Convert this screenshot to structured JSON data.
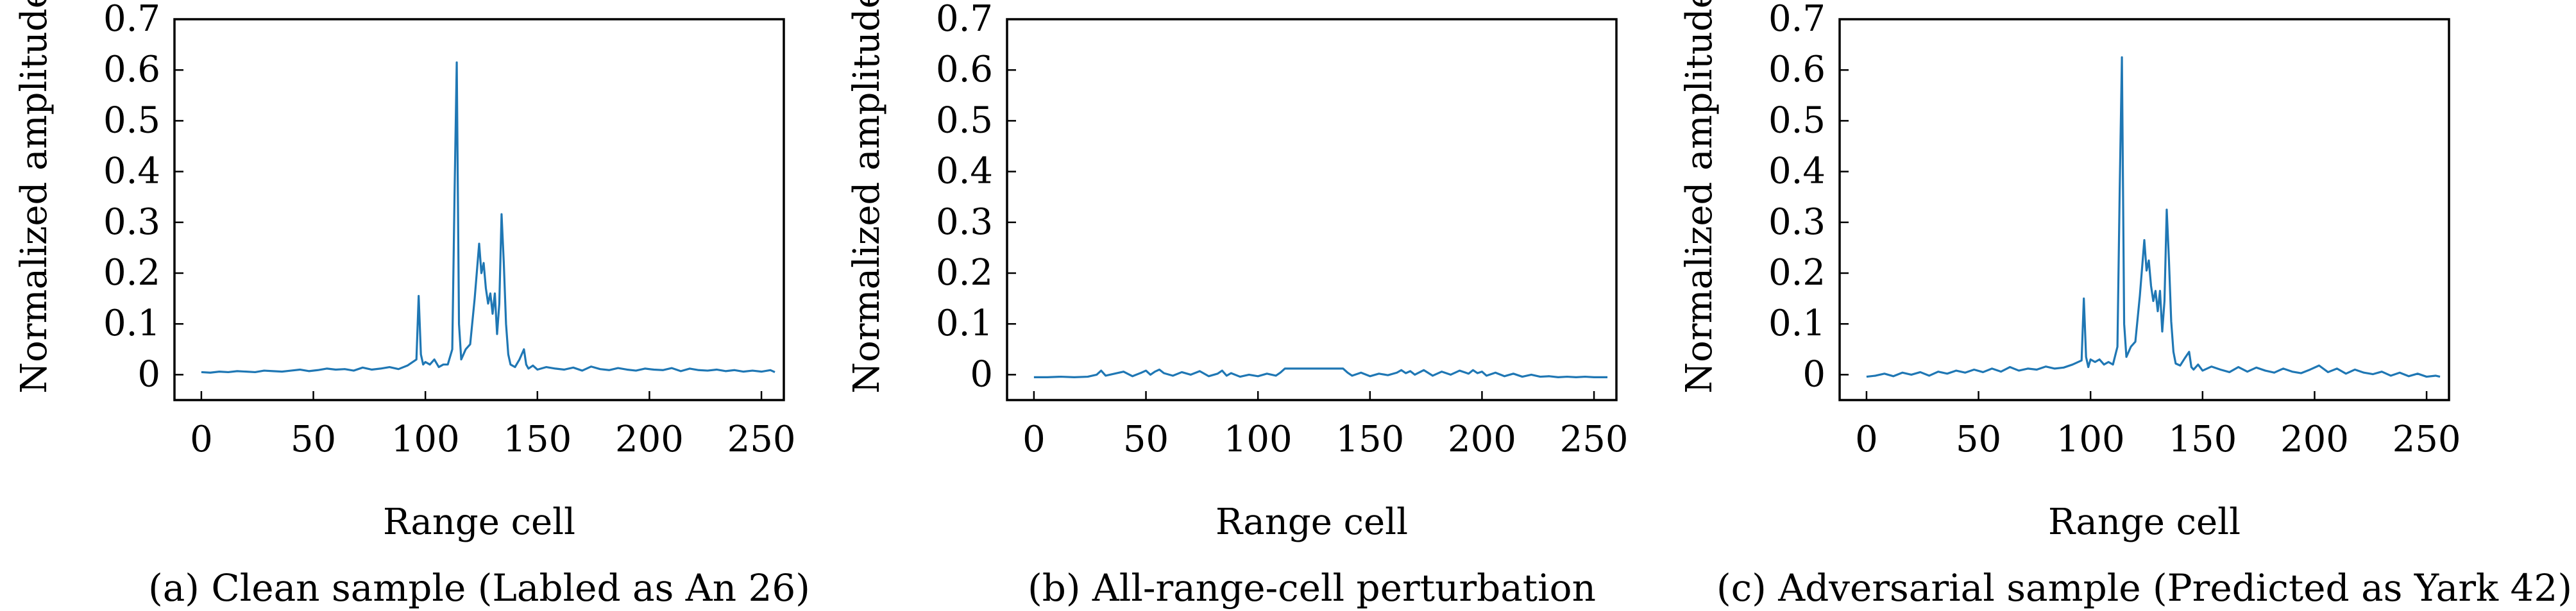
{
  "chart_data": [
    {
      "type": "line",
      "caption": "(a) Clean sample (Labled as An 26)",
      "xlabel": "Range cell",
      "ylabel": "Normalized amplitude",
      "xlim": [
        -12,
        260
      ],
      "ylim": [
        -0.05,
        0.7
      ],
      "xticks": [
        0,
        50,
        100,
        150,
        200,
        250
      ],
      "yticks": [
        0,
        0.1,
        0.2,
        0.3,
        0.4,
        0.5,
        0.6,
        0.7
      ],
      "grid": false,
      "series": [
        {
          "color": "#1f77b4",
          "x": [
            0,
            4,
            8,
            12,
            16,
            20,
            24,
            28,
            32,
            36,
            40,
            44,
            48,
            52,
            56,
            60,
            64,
            68,
            72,
            76,
            80,
            84,
            88,
            92,
            96,
            97,
            98,
            99,
            100,
            102,
            104,
            106,
            108,
            110,
            112,
            113,
            114,
            115,
            116,
            118,
            120,
            122,
            124,
            125,
            126,
            127,
            128,
            129,
            130,
            131,
            132,
            133,
            134,
            135,
            136,
            137,
            138,
            140,
            142,
            144,
            145,
            146,
            148,
            150,
            154,
            158,
            162,
            166,
            170,
            174,
            178,
            182,
            186,
            190,
            194,
            198,
            202,
            206,
            210,
            214,
            218,
            222,
            226,
            230,
            234,
            238,
            242,
            246,
            250,
            254,
            256
          ],
          "y": [
            0.005,
            0.004,
            0.006,
            0.005,
            0.007,
            0.006,
            0.005,
            0.008,
            0.007,
            0.006,
            0.008,
            0.01,
            0.007,
            0.009,
            0.012,
            0.01,
            0.011,
            0.008,
            0.014,
            0.01,
            0.012,
            0.015,
            0.011,
            0.018,
            0.03,
            0.155,
            0.04,
            0.02,
            0.025,
            0.02,
            0.03,
            0.015,
            0.02,
            0.02,
            0.05,
            0.35,
            0.615,
            0.1,
            0.03,
            0.05,
            0.06,
            0.15,
            0.258,
            0.2,
            0.22,
            0.17,
            0.14,
            0.16,
            0.12,
            0.16,
            0.08,
            0.14,
            0.316,
            0.22,
            0.1,
            0.04,
            0.02,
            0.015,
            0.03,
            0.05,
            0.02,
            0.012,
            0.018,
            0.01,
            0.015,
            0.012,
            0.01,
            0.014,
            0.008,
            0.016,
            0.011,
            0.009,
            0.013,
            0.01,
            0.008,
            0.012,
            0.01,
            0.009,
            0.013,
            0.007,
            0.012,
            0.009,
            0.008,
            0.01,
            0.007,
            0.009,
            0.006,
            0.008,
            0.006,
            0.009,
            0.005
          ]
        }
      ]
    },
    {
      "type": "line",
      "caption": "(b) All-range-cell perturbation",
      "xlabel": "Range cell",
      "ylabel": "Normalized amplitude",
      "xlim": [
        -12,
        260
      ],
      "ylim": [
        -0.05,
        0.7
      ],
      "xticks": [
        0,
        50,
        100,
        150,
        200,
        250
      ],
      "yticks": [
        0,
        0.1,
        0.2,
        0.3,
        0.4,
        0.5,
        0.6,
        0.7
      ],
      "grid": false,
      "series": [
        {
          "color": "#1f77b4",
          "x": [
            0,
            6,
            12,
            18,
            24,
            28,
            30,
            32,
            36,
            40,
            44,
            48,
            50,
            52,
            54,
            56,
            58,
            62,
            66,
            70,
            74,
            78,
            82,
            84,
            86,
            88,
            92,
            96,
            100,
            104,
            108,
            110,
            112,
            116,
            120,
            124,
            128,
            132,
            136,
            138,
            140,
            142,
            146,
            150,
            154,
            158,
            162,
            164,
            166,
            168,
            170,
            174,
            178,
            182,
            186,
            190,
            194,
            196,
            198,
            200,
            202,
            206,
            210,
            214,
            218,
            222,
            226,
            230,
            234,
            238,
            242,
            246,
            250,
            254,
            256
          ],
          "y": [
            -0.005,
            -0.005,
            -0.004,
            -0.005,
            -0.004,
            0.0,
            0.008,
            -0.002,
            0.002,
            0.006,
            -0.003,
            0.004,
            0.008,
            0.0,
            0.006,
            0.01,
            0.003,
            -0.002,
            0.005,
            0.0,
            0.007,
            -0.003,
            0.002,
            0.008,
            -0.002,
            0.003,
            -0.004,
            0.0,
            -0.003,
            0.002,
            -0.002,
            0.004,
            0.012,
            0.012,
            0.012,
            0.012,
            0.012,
            0.012,
            0.012,
            0.012,
            0.004,
            -0.002,
            0.004,
            -0.003,
            0.002,
            -0.001,
            0.004,
            0.009,
            0.003,
            0.007,
            0.0,
            0.009,
            -0.002,
            0.006,
            0.0,
            0.008,
            0.002,
            0.009,
            0.003,
            0.006,
            -0.002,
            0.004,
            -0.003,
            0.002,
            -0.004,
            0.0,
            -0.004,
            -0.003,
            -0.005,
            -0.004,
            -0.005,
            -0.004,
            -0.005,
            -0.005,
            -0.005
          ]
        }
      ]
    },
    {
      "type": "line",
      "caption": "(c) Adversarial sample (Predicted as Yark 42)",
      "xlabel": "Range cell",
      "ylabel": "Normalized amplitude",
      "xlim": [
        -12,
        260
      ],
      "ylim": [
        -0.05,
        0.7
      ],
      "xticks": [
        0,
        50,
        100,
        150,
        200,
        250
      ],
      "yticks": [
        0,
        0.1,
        0.2,
        0.3,
        0.4,
        0.5,
        0.6,
        0.7
      ],
      "grid": false,
      "series": [
        {
          "color": "#1f77b4",
          "x": [
            0,
            4,
            8,
            12,
            16,
            20,
            24,
            28,
            32,
            36,
            40,
            44,
            48,
            52,
            56,
            60,
            64,
            68,
            72,
            76,
            80,
            84,
            88,
            92,
            96,
            97,
            98,
            99,
            100,
            102,
            104,
            106,
            108,
            110,
            112,
            113,
            114,
            115,
            116,
            118,
            120,
            122,
            124,
            125,
            126,
            127,
            128,
            129,
            130,
            131,
            132,
            133,
            134,
            135,
            136,
            137,
            138,
            140,
            142,
            144,
            145,
            146,
            148,
            150,
            154,
            158,
            162,
            166,
            170,
            174,
            178,
            182,
            186,
            190,
            194,
            198,
            202,
            206,
            210,
            214,
            218,
            222,
            226,
            230,
            234,
            238,
            242,
            246,
            250,
            254,
            256
          ],
          "y": [
            -0.004,
            -0.002,
            0.002,
            -0.003,
            0.004,
            0.0,
            0.005,
            -0.002,
            0.006,
            0.002,
            0.008,
            0.004,
            0.01,
            0.005,
            0.012,
            0.006,
            0.015,
            0.008,
            0.012,
            0.01,
            0.016,
            0.012,
            0.014,
            0.02,
            0.028,
            0.15,
            0.035,
            0.015,
            0.03,
            0.025,
            0.03,
            0.02,
            0.025,
            0.02,
            0.055,
            0.36,
            0.625,
            0.1,
            0.035,
            0.055,
            0.065,
            0.155,
            0.265,
            0.205,
            0.225,
            0.175,
            0.145,
            0.165,
            0.125,
            0.165,
            0.085,
            0.145,
            0.325,
            0.225,
            0.105,
            0.045,
            0.022,
            0.018,
            0.032,
            0.045,
            0.015,
            0.01,
            0.02,
            0.008,
            0.016,
            0.01,
            0.005,
            0.015,
            0.006,
            0.014,
            0.008,
            0.004,
            0.012,
            0.006,
            0.003,
            0.01,
            0.018,
            0.005,
            0.012,
            0.002,
            0.01,
            0.004,
            0.001,
            0.006,
            -0.002,
            0.004,
            -0.003,
            0.002,
            -0.004,
            -0.002,
            -0.004
          ]
        }
      ]
    }
  ]
}
